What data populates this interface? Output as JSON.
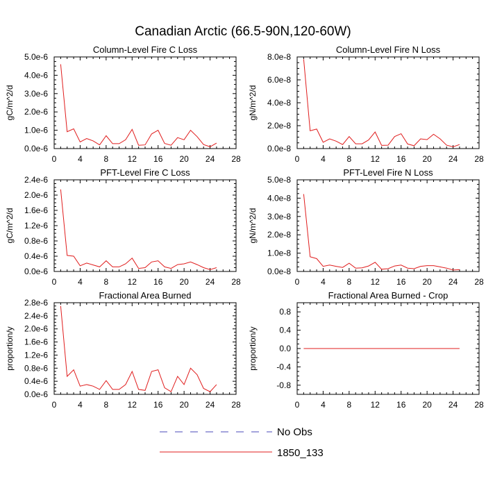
{
  "page_title": "Canadian Arctic (66.5-90N,120-60W)",
  "legend": {
    "entries": [
      {
        "label": "No Obs",
        "color": "#4a4ab8",
        "dash": true
      },
      {
        "label": "1850_133",
        "color": "#e01c1c",
        "dash": false
      }
    ]
  },
  "chart_data": [
    {
      "type": "line",
      "title": "Column-Level Fire C Loss",
      "ylabel": "gC/m^2/d",
      "xlim": [
        0,
        28
      ],
      "xticks": [
        "0",
        "4",
        "8",
        "12",
        "16",
        "20",
        "24",
        "28"
      ],
      "ylim": [
        0,
        5e-06
      ],
      "yticks": [
        0,
        1e-06,
        2e-06,
        3e-06,
        4e-06,
        5e-06
      ],
      "yticklabels": [
        "0.0e-6",
        "1.0e-6",
        "2.0e-6",
        "3.0e-6",
        "4.0e-6",
        "5.0e-6"
      ],
      "series": [
        {
          "color": "#e01c1c",
          "x": [
            1,
            2,
            3,
            4,
            5,
            6,
            7,
            8,
            9,
            10,
            11,
            12,
            13,
            14,
            15,
            16,
            17,
            18,
            19,
            20,
            21,
            22,
            23,
            24,
            25
          ],
          "y": [
            4.6e-06,
            9.2e-07,
            1.08e-06,
            3.6e-07,
            5.5e-07,
            4.2e-07,
            2e-07,
            7e-07,
            2.7e-07,
            2.7e-07,
            4.8e-07,
            1.05e-06,
            1.8e-07,
            2e-07,
            8e-07,
            1e-06,
            2.8e-07,
            1.8e-07,
            6e-07,
            4.8e-07,
            1e-06,
            6.5e-07,
            2.2e-07,
            1e-07,
            3e-07
          ]
        }
      ]
    },
    {
      "type": "line",
      "title": "Column-Level Fire N Loss",
      "ylabel": "gN/m^2/d",
      "xlim": [
        0,
        28
      ],
      "xticks": [
        "0",
        "4",
        "8",
        "12",
        "16",
        "20",
        "24",
        "28"
      ],
      "ylim": [
        0,
        8e-08
      ],
      "yticks": [
        0,
        2e-08,
        4e-08,
        6e-08,
        8e-08
      ],
      "yticklabels": [
        "0.0e-8",
        "2.0e-8",
        "4.0e-8",
        "6.0e-8",
        "8.0e-8"
      ],
      "series": [
        {
          "color": "#e01c1c",
          "x": [
            1,
            2,
            3,
            4,
            5,
            6,
            7,
            8,
            9,
            10,
            11,
            12,
            13,
            14,
            15,
            16,
            17,
            18,
            19,
            20,
            21,
            22,
            23,
            24,
            25
          ],
          "y": [
            7.8e-08,
            1.55e-08,
            1.7e-08,
            5.5e-09,
            8.5e-09,
            6.5e-09,
            3.5e-09,
            1.05e-08,
            4.2e-09,
            4.2e-09,
            7.5e-09,
            1.45e-08,
            2.8e-09,
            3e-09,
            1.05e-08,
            1.3e-08,
            4e-09,
            2.5e-09,
            8.5e-09,
            7.8e-09,
            1.25e-08,
            8.5e-09,
            3e-09,
            1.5e-09,
            3.5e-09
          ]
        }
      ]
    },
    {
      "type": "line",
      "title": "PFT-Level Fire C Loss",
      "ylabel": "gC/m^2/d",
      "xlim": [
        0,
        28
      ],
      "xticks": [
        "0",
        "4",
        "8",
        "12",
        "16",
        "20",
        "24",
        "28"
      ],
      "ylim": [
        0,
        2.4e-06
      ],
      "yticks": [
        0,
        4e-07,
        8e-07,
        1.2e-06,
        1.6e-06,
        2e-06,
        2.4e-06
      ],
      "yticklabels": [
        "0.0e-6",
        "0.4e-6",
        "0.8e-6",
        "1.2e-6",
        "1.6e-6",
        "2.0e-6",
        "2.4e-6"
      ],
      "series": [
        {
          "color": "#e01c1c",
          "x": [
            1,
            2,
            3,
            4,
            5,
            6,
            7,
            8,
            9,
            10,
            11,
            12,
            13,
            14,
            15,
            16,
            17,
            18,
            19,
            20,
            21,
            22,
            23,
            24,
            25
          ],
          "y": [
            2.15e-06,
            4.2e-07,
            4e-07,
            1.5e-07,
            2.2e-07,
            1.7e-07,
            1.2e-07,
            2.8e-07,
            1.2e-07,
            1.2e-07,
            2e-07,
            3.5e-07,
            8e-08,
            1e-07,
            2.5e-07,
            2.8e-07,
            1.2e-07,
            8e-08,
            1.8e-07,
            2e-07,
            2.5e-07,
            1.8e-07,
            1e-07,
            5e-08,
            1e-07
          ]
        }
      ]
    },
    {
      "type": "line",
      "title": "PFT-Level Fire N Loss",
      "ylabel": "gN/m^2/d",
      "xlim": [
        0,
        28
      ],
      "xticks": [
        "0",
        "4",
        "8",
        "12",
        "16",
        "20",
        "24",
        "28"
      ],
      "ylim": [
        0,
        5e-08
      ],
      "yticks": [
        0,
        1e-08,
        2e-08,
        3e-08,
        4e-08,
        5e-08
      ],
      "yticklabels": [
        "0.0e-8",
        "1.0e-8",
        "2.0e-8",
        "3.0e-8",
        "4.0e-8",
        "5.0e-8"
      ],
      "series": [
        {
          "color": "#e01c1c",
          "x": [
            1,
            2,
            3,
            4,
            5,
            6,
            7,
            8,
            9,
            10,
            11,
            12,
            13,
            14,
            15,
            16,
            17,
            18,
            19,
            20,
            21,
            22,
            23,
            24,
            25
          ],
          "y": [
            4.22e-08,
            8e-09,
            7e-09,
            2.8e-09,
            3.5e-09,
            2.8e-09,
            2.2e-09,
            4.5e-09,
            1.8e-09,
            2e-09,
            3e-09,
            5e-09,
            1.2e-09,
            1.5e-09,
            3e-09,
            3.5e-09,
            1.8e-09,
            1.5e-09,
            2.8e-09,
            3.2e-09,
            3.2e-09,
            2.5e-09,
            1.8e-09,
            8e-10,
            1e-09
          ]
        }
      ]
    },
    {
      "type": "line",
      "title": "Fractional Area Burned",
      "ylabel": "proportion/y",
      "xlim": [
        0,
        28
      ],
      "xticks": [
        "0",
        "4",
        "8",
        "12",
        "16",
        "20",
        "24",
        "28"
      ],
      "ylim": [
        0,
        2.8e-06
      ],
      "yticks": [
        0,
        4e-07,
        8e-07,
        1.2e-06,
        1.6e-06,
        2e-06,
        2.4e-06,
        2.8e-06
      ],
      "yticklabels": [
        "0.0e-6",
        "0.4e-6",
        "0.8e-6",
        "1.2e-6",
        "1.6e-6",
        "2.0e-6",
        "2.4e-6",
        "2.8e-6"
      ],
      "series": [
        {
          "color": "#e01c1c",
          "x": [
            1,
            2,
            3,
            4,
            5,
            6,
            7,
            8,
            9,
            10,
            11,
            12,
            13,
            14,
            15,
            16,
            17,
            18,
            19,
            20,
            21,
            22,
            23,
            24,
            25
          ],
          "y": [
            2.7e-06,
            5.5e-07,
            7.5e-07,
            2.5e-07,
            3e-07,
            2.5e-07,
            1.5e-07,
            4.2e-07,
            1.5e-07,
            1.5e-07,
            3e-07,
            7e-07,
            1.5e-07,
            1.2e-07,
            7e-07,
            7.5e-07,
            2e-07,
            8e-08,
            5.5e-07,
            3e-07,
            8e-07,
            6e-07,
            1.8e-07,
            8e-08,
            3e-07
          ]
        }
      ]
    },
    {
      "type": "line",
      "title": "Fractional Area Burned - Crop",
      "ylabel": "proportion/y",
      "xlim": [
        0,
        28
      ],
      "xticks": [
        "0",
        "4",
        "8",
        "12",
        "16",
        "20",
        "24",
        "28"
      ],
      "ylim": [
        -1.0,
        1.0
      ],
      "yticks": [
        -0.8,
        -0.4,
        0.0,
        0.4,
        0.8
      ],
      "yticklabels": [
        "-0.8",
        "-0.4",
        "0.0",
        "0.4",
        "0.8"
      ],
      "series": [
        {
          "color": "#e01c1c",
          "x": [
            1,
            2,
            3,
            4,
            5,
            6,
            7,
            8,
            9,
            10,
            11,
            12,
            13,
            14,
            15,
            16,
            17,
            18,
            19,
            20,
            21,
            22,
            23,
            24,
            25
          ],
          "y": [
            0,
            0,
            0,
            0,
            0,
            0,
            0,
            0,
            0,
            0,
            0,
            0,
            0,
            0,
            0,
            0,
            0,
            0,
            0,
            0,
            0,
            0,
            0,
            0,
            0
          ]
        }
      ]
    }
  ]
}
